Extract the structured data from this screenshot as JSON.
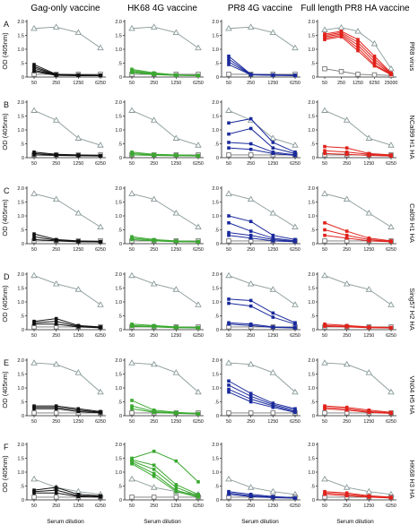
{
  "figure": {
    "column_titles": [
      "Gag-only vaccine",
      "HK68 4G vaccine",
      "PR8 4G vaccine",
      "Full length PR8 HA vaccine"
    ],
    "row_letters": [
      "A",
      "B",
      "C",
      "D",
      "E",
      "F"
    ],
    "row_titles": [
      "PR8 virus",
      "NCal99 H1 HA",
      "Cal09 H1 HA",
      "Sing57 H2 HA",
      "VN04 H5 HA",
      "HK68 H3 HA"
    ],
    "y_axis_label": "OD (405nm)",
    "x_axis_label": "Serum dilution"
  },
  "colors": {
    "control": "#8a9a9a",
    "gag": "#111111",
    "hk68": "#3aa82f",
    "pr8_4g": "#1a2a9c",
    "full_pr8": "#e0221b",
    "axis": "#222222"
  },
  "chart_data": {
    "type": "line",
    "ylim": [
      0,
      2.0
    ],
    "yticks": [
      "0",
      ".5",
      "1.0",
      "1.5",
      "2.0"
    ],
    "x": [
      "50",
      "250",
      "1250",
      "6250"
    ],
    "x_extended": [
      "50",
      "250",
      "1250",
      "6250",
      "25000"
    ],
    "series_note": "grey triangles = positive control; open squares = negative control; colored lines = individual vaccinated animals",
    "rows": [
      {
        "row": "A",
        "antigen": "PR8 virus",
        "panels": [
          {
            "column": "Gag-only vaccine",
            "pos": [
              1.75,
              1.8,
              1.6,
              1.05
            ],
            "neg": [
              0.1,
              0.1,
              0.1,
              0.1
            ],
            "lines": [
              [
                0.45,
                0.1,
                0.08,
                0.07
              ],
              [
                0.38,
                0.08,
                0.07,
                0.06
              ],
              [
                0.32,
                0.07,
                0.06,
                0.06
              ],
              [
                0.25,
                0.07,
                0.06,
                0.05
              ],
              [
                0.2,
                0.06,
                0.05,
                0.05
              ]
            ]
          },
          {
            "column": "HK68 4G vaccine",
            "pos": [
              1.75,
              1.8,
              1.6,
              1.05
            ],
            "neg": [
              0.1,
              0.1,
              0.1,
              0.1
            ],
            "lines": [
              [
                0.28,
                0.15,
                0.08,
                0.06
              ],
              [
                0.24,
                0.12,
                0.07,
                0.06
              ],
              [
                0.2,
                0.1,
                0.07,
                0.05
              ],
              [
                0.16,
                0.09,
                0.06,
                0.05
              ]
            ]
          },
          {
            "column": "PR8 4G vaccine",
            "pos": [
              1.75,
              1.8,
              1.6,
              1.05
            ],
            "neg": [
              0.1,
              0.1,
              0.1,
              0.1
            ],
            "lines": [
              [
                0.75,
                0.1,
                0.08,
                0.07
              ],
              [
                0.65,
                0.09,
                0.07,
                0.06
              ],
              [
                0.55,
                0.08,
                0.07,
                0.06
              ],
              [
                0.45,
                0.08,
                0.06,
                0.05
              ]
            ]
          },
          {
            "column": "Full length PR8 HA vaccine",
            "extended_x": true,
            "pos": [
              1.7,
              1.78,
              1.65,
              1.2,
              0.3
            ],
            "neg": [
              0.3,
              0.2,
              0.1,
              0.08,
              0.06
            ],
            "lines": [
              [
                1.55,
                1.65,
                1.35,
                0.75,
                0.15
              ],
              [
                1.5,
                1.6,
                1.25,
                0.65,
                0.12
              ],
              [
                1.45,
                1.55,
                1.15,
                0.55,
                0.1
              ],
              [
                1.4,
                1.5,
                1.05,
                0.45,
                0.09
              ],
              [
                1.35,
                1.45,
                0.95,
                0.4,
                0.08
              ]
            ]
          }
        ]
      },
      {
        "row": "B",
        "antigen": "NCal99 H1 HA",
        "panels": [
          {
            "column": "Gag-only vaccine",
            "pos": [
              1.7,
              1.35,
              0.7,
              0.45
            ],
            "neg": [
              0.1,
              0.1,
              0.1,
              0.1
            ],
            "lines": [
              [
                0.2,
                0.12,
                0.1,
                0.08
              ],
              [
                0.15,
                0.1,
                0.08,
                0.07
              ],
              [
                0.1,
                0.08,
                0.07,
                0.06
              ]
            ]
          },
          {
            "column": "HK68 4G vaccine",
            "pos": [
              1.7,
              1.35,
              0.7,
              0.45
            ],
            "neg": [
              0.1,
              0.1,
              0.1,
              0.1
            ],
            "lines": [
              [
                0.2,
                0.12,
                0.1,
                0.08
              ],
              [
                0.15,
                0.1,
                0.08,
                0.07
              ],
              [
                0.1,
                0.08,
                0.07,
                0.06
              ]
            ]
          },
          {
            "column": "PR8 4G vaccine",
            "pos": [
              1.7,
              1.35,
              0.7,
              0.45
            ],
            "neg": [
              0.1,
              0.1,
              0.1,
              0.1
            ],
            "lines": [
              [
                1.25,
                1.4,
                0.55,
                0.2
              ],
              [
                0.85,
                1.05,
                0.35,
                0.15
              ],
              [
                0.55,
                0.5,
                0.2,
                0.1
              ],
              [
                0.35,
                0.3,
                0.15,
                0.08
              ]
            ]
          },
          {
            "column": "Full length PR8 HA vaccine",
            "pos": [
              1.7,
              1.35,
              0.7,
              0.45
            ],
            "neg": [
              0.1,
              0.1,
              0.1,
              0.1
            ],
            "lines": [
              [
                0.4,
                0.35,
                0.15,
                0.1
              ],
              [
                0.25,
                0.2,
                0.12,
                0.08
              ],
              [
                0.15,
                0.12,
                0.08,
                0.06
              ]
            ]
          }
        ]
      },
      {
        "row": "C",
        "antigen": "Cal09 H1 HA",
        "panels": [
          {
            "column": "Gag-only vaccine",
            "pos": [
              1.8,
              1.6,
              1.1,
              0.6
            ],
            "neg": [
              0.1,
              0.1,
              0.1,
              0.1
            ],
            "lines": [
              [
                0.35,
                0.15,
                0.1,
                0.08
              ],
              [
                0.25,
                0.12,
                0.08,
                0.07
              ],
              [
                0.15,
                0.1,
                0.07,
                0.06
              ]
            ]
          },
          {
            "column": "HK68 4G vaccine",
            "pos": [
              1.8,
              1.6,
              1.1,
              0.6
            ],
            "neg": [
              0.1,
              0.1,
              0.1,
              0.1
            ],
            "lines": [
              [
                0.25,
                0.15,
                0.1,
                0.08
              ],
              [
                0.2,
                0.12,
                0.08,
                0.07
              ],
              [
                0.15,
                0.1,
                0.07,
                0.06
              ]
            ]
          },
          {
            "column": "PR8 4G vaccine",
            "pos": [
              1.8,
              1.6,
              1.1,
              0.6
            ],
            "neg": [
              0.1,
              0.1,
              0.1,
              0.1
            ],
            "lines": [
              [
                1.0,
                0.8,
                0.3,
                0.15
              ],
              [
                0.75,
                0.45,
                0.2,
                0.1
              ],
              [
                0.4,
                0.3,
                0.15,
                0.08
              ],
              [
                0.3,
                0.2,
                0.1,
                0.07
              ]
            ]
          },
          {
            "column": "Full length PR8 HA vaccine",
            "pos": [
              1.8,
              1.6,
              1.1,
              0.6
            ],
            "neg": [
              0.1,
              0.1,
              0.1,
              0.1
            ],
            "lines": [
              [
                0.75,
                0.45,
                0.2,
                0.1
              ],
              [
                0.5,
                0.3,
                0.15,
                0.08
              ],
              [
                0.3,
                0.2,
                0.1,
                0.07
              ]
            ]
          }
        ]
      },
      {
        "row": "D",
        "antigen": "Sing57 H2 HA",
        "panels": [
          {
            "column": "Gag-only vaccine",
            "pos": [
              1.95,
              1.65,
              1.45,
              0.9
            ],
            "neg": [
              0.1,
              0.1,
              0.1,
              0.1
            ],
            "lines": [
              [
                0.3,
                0.4,
                0.15,
                0.1
              ],
              [
                0.25,
                0.3,
                0.12,
                0.08
              ],
              [
                0.2,
                0.2,
                0.1,
                0.07
              ]
            ]
          },
          {
            "column": "HK68 4G vaccine",
            "pos": [
              1.95,
              1.65,
              1.45,
              0.9
            ],
            "neg": [
              0.1,
              0.1,
              0.1,
              0.1
            ],
            "lines": [
              [
                0.2,
                0.15,
                0.1,
                0.08
              ],
              [
                0.15,
                0.12,
                0.08,
                0.07
              ],
              [
                0.12,
                0.1,
                0.07,
                0.06
              ]
            ]
          },
          {
            "column": "PR8 4G vaccine",
            "pos": [
              1.95,
              1.65,
              1.45,
              0.9
            ],
            "neg": [
              0.1,
              0.1,
              0.1,
              0.1
            ],
            "lines": [
              [
                1.1,
                1.05,
                0.6,
                0.25
              ],
              [
                0.95,
                0.85,
                0.45,
                0.2
              ],
              [
                0.25,
                0.2,
                0.1,
                0.08
              ],
              [
                0.2,
                0.15,
                0.08,
                0.06
              ]
            ]
          },
          {
            "column": "Full length PR8 HA vaccine",
            "pos": [
              1.95,
              1.65,
              1.45,
              0.9
            ],
            "neg": [
              0.1,
              0.1,
              0.1,
              0.1
            ],
            "lines": [
              [
                0.2,
                0.15,
                0.1,
                0.08
              ],
              [
                0.15,
                0.12,
                0.08,
                0.07
              ],
              [
                0.12,
                0.1,
                0.07,
                0.06
              ]
            ]
          }
        ]
      },
      {
        "row": "E",
        "antigen": "VN04 H5 HA",
        "panels": [
          {
            "column": "Gag-only vaccine",
            "pos": [
              1.9,
              1.85,
              1.55,
              0.85
            ],
            "neg": [
              0.1,
              0.1,
              0.1,
              0.1
            ],
            "lines": [
              [
                0.35,
                0.35,
                0.25,
                0.15
              ],
              [
                0.3,
                0.3,
                0.2,
                0.12
              ],
              [
                0.25,
                0.25,
                0.15,
                0.1
              ]
            ]
          },
          {
            "column": "HK68 4G vaccine",
            "pos": [
              1.9,
              1.85,
              1.55,
              0.85
            ],
            "neg": [
              0.1,
              0.1,
              0.1,
              0.1
            ],
            "lines": [
              [
                0.55,
                0.2,
                0.12,
                0.08
              ],
              [
                0.35,
                0.15,
                0.1,
                0.07
              ],
              [
                0.25,
                0.12,
                0.08,
                0.06
              ]
            ]
          },
          {
            "column": "PR8 4G vaccine",
            "pos": [
              1.9,
              1.85,
              1.55,
              0.85
            ],
            "neg": [
              0.1,
              0.1,
              0.1,
              0.1
            ],
            "lines": [
              [
                1.25,
                0.8,
                0.45,
                0.25
              ],
              [
                1.1,
                0.7,
                0.4,
                0.2
              ],
              [
                0.95,
                0.6,
                0.35,
                0.15
              ],
              [
                0.85,
                0.5,
                0.3,
                0.12
              ]
            ]
          },
          {
            "column": "Full length PR8 HA vaccine",
            "pos": [
              1.9,
              1.85,
              1.55,
              0.85
            ],
            "neg": [
              0.1,
              0.1,
              0.1,
              0.1
            ],
            "lines": [
              [
                0.35,
                0.3,
                0.2,
                0.12
              ],
              [
                0.3,
                0.25,
                0.15,
                0.1
              ],
              [
                0.25,
                0.2,
                0.12,
                0.08
              ]
            ]
          }
        ]
      },
      {
        "row": "F",
        "antigen": "HK68 H3 HA",
        "panels": [
          {
            "column": "Gag-only vaccine",
            "pos": [
              0.75,
              0.45,
              0.3,
              0.2
            ],
            "neg": [
              0.1,
              0.1,
              0.1,
              0.1
            ],
            "lines": [
              [
                0.35,
                0.45,
                0.2,
                0.15
              ],
              [
                0.3,
                0.35,
                0.15,
                0.12
              ],
              [
                0.25,
                0.25,
                0.12,
                0.1
              ]
            ]
          },
          {
            "column": "HK68 4G vaccine",
            "pos": [
              0.75,
              0.45,
              0.3,
              0.2
            ],
            "neg": [
              0.1,
              0.1,
              0.1,
              0.1
            ],
            "lines": [
              [
                1.5,
                1.75,
                1.4,
                0.65
              ],
              [
                1.45,
                1.25,
                0.55,
                0.2
              ],
              [
                1.4,
                1.1,
                0.45,
                0.15
              ],
              [
                1.35,
                0.95,
                0.35,
                0.12
              ],
              [
                1.3,
                0.85,
                0.3,
                0.1
              ]
            ]
          },
          {
            "column": "PR8 4G vaccine",
            "pos": [
              0.75,
              0.45,
              0.3,
              0.2
            ],
            "neg": [
              0.1,
              0.1,
              0.1,
              0.1
            ],
            "lines": [
              [
                0.3,
                0.2,
                0.12,
                0.08
              ],
              [
                0.25,
                0.15,
                0.1,
                0.07
              ],
              [
                0.2,
                0.12,
                0.08,
                0.06
              ]
            ]
          },
          {
            "column": "Full length PR8 HA vaccine",
            "pos": [
              0.75,
              0.45,
              0.3,
              0.2
            ],
            "neg": [
              0.1,
              0.1,
              0.1,
              0.1
            ],
            "lines": [
              [
                0.3,
                0.25,
                0.15,
                0.1
              ],
              [
                0.25,
                0.2,
                0.12,
                0.08
              ],
              [
                0.2,
                0.15,
                0.1,
                0.07
              ]
            ]
          }
        ]
      }
    ]
  }
}
